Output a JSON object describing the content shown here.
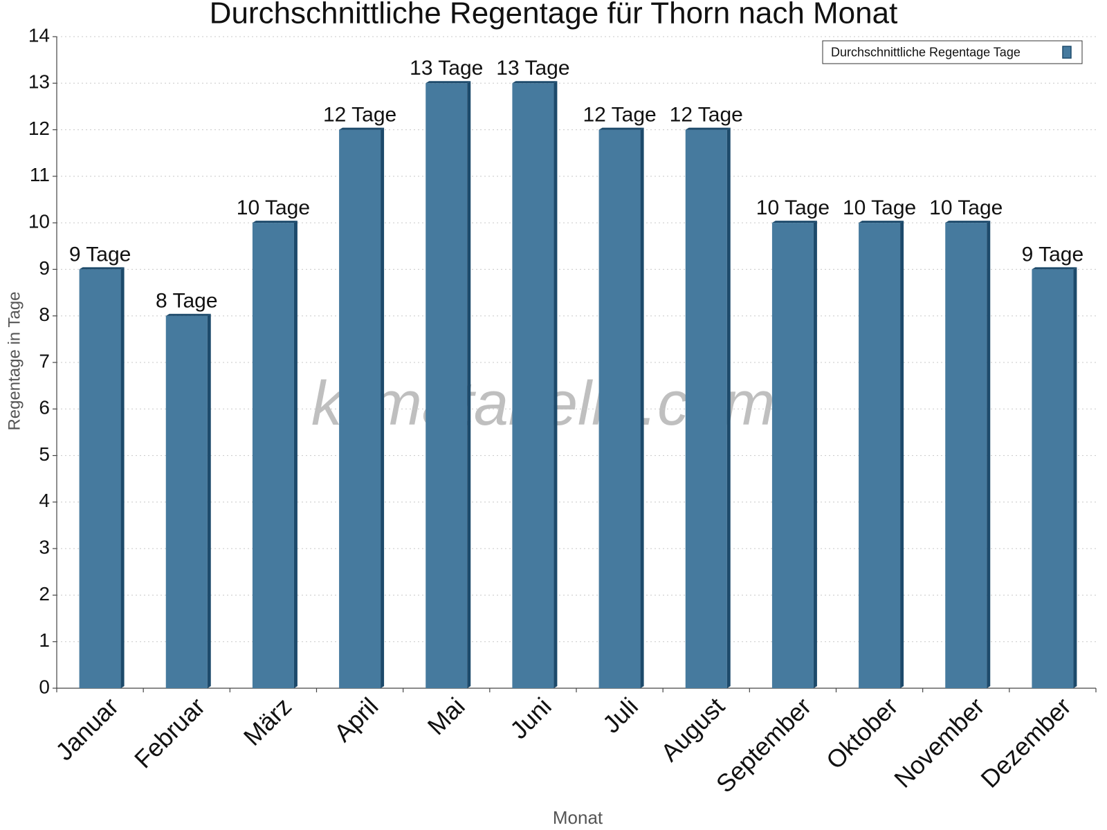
{
  "chart_data": {
    "type": "bar",
    "title": "Durchschnittliche Regentage für Thorn nach Monat",
    "x_label": "Monat",
    "y_label": "Regentage in Tage",
    "watermark": "klimatabelle.com",
    "categories": [
      "Januar",
      "Februar",
      "März",
      "April",
      "Mai",
      "Juni",
      "Juli",
      "August",
      "September",
      "Oktober",
      "November",
      "Dezember"
    ],
    "series": [
      {
        "name": "Durchschnittliche Regentage Tage",
        "color": "#467a9e",
        "values": [
          9,
          8,
          10,
          12,
          13,
          13,
          12,
          12,
          10,
          10,
          10,
          9
        ],
        "value_labels": [
          "9 Tage",
          "8 Tage",
          "10 Tage",
          "12 Tage",
          "13 Tage",
          "13 Tage",
          "12 Tage",
          "12 Tage",
          "10 Tage",
          "10 Tage",
          "10 Tage",
          "9 Tage"
        ]
      }
    ],
    "ylim": [
      0,
      14
    ],
    "yticks": [
      0,
      1,
      2,
      3,
      4,
      5,
      6,
      7,
      8,
      9,
      10,
      11,
      12,
      13,
      14
    ],
    "grid": true,
    "legend": "top-right"
  }
}
